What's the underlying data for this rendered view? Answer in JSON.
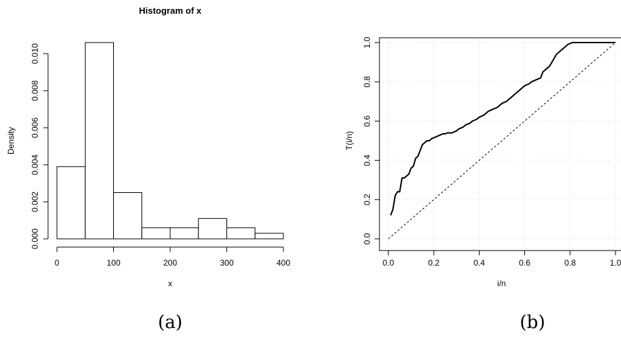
{
  "chart_data": [
    {
      "type": "bar",
      "panel_caption": "(a)",
      "title": "Histogram of x",
      "xlabel": "x",
      "ylabel": "Density",
      "bin_edges": [
        0,
        50,
        100,
        150,
        200,
        250,
        300,
        350,
        400
      ],
      "values": [
        0.0039,
        0.0106,
        0.0025,
        0.0006,
        0.0006,
        0.0011,
        0.0006,
        0.0003
      ],
      "xlim": [
        0,
        400
      ],
      "ylim": [
        0,
        0.0106
      ],
      "x_ticks": [
        "0",
        "100",
        "200",
        "300",
        "400"
      ],
      "y_ticks": [
        "0.000",
        "0.002",
        "0.004",
        "0.006",
        "0.008",
        "0.010"
      ],
      "grid": false,
      "colors": {
        "bar_fill": "#ffffff",
        "bar_stroke": "#000000"
      }
    },
    {
      "type": "line",
      "panel_caption": "(b)",
      "xlabel": "i/n",
      "ylabel": "T(i/n)",
      "xlim": [
        0,
        1
      ],
      "ylim": [
        0,
        1
      ],
      "x_ticks": [
        "0.0",
        "0.2",
        "0.4",
        "0.6",
        "0.8",
        "1.0"
      ],
      "y_ticks": [
        "0.0",
        "0.2",
        "0.4",
        "0.6",
        "0.8",
        "1.0"
      ],
      "grid": true,
      "series": [
        {
          "style": "solid",
          "x": [
            0.01,
            0.02,
            0.03,
            0.04,
            0.05,
            0.06,
            0.07,
            0.08,
            0.09,
            0.1,
            0.11,
            0.12,
            0.13,
            0.14,
            0.15,
            0.16,
            0.17,
            0.18,
            0.19,
            0.2,
            0.21,
            0.22,
            0.23,
            0.24,
            0.25,
            0.26,
            0.27,
            0.28,
            0.29,
            0.3,
            0.31,
            0.32,
            0.33,
            0.34,
            0.35,
            0.36,
            0.37,
            0.38,
            0.39,
            0.4,
            0.41,
            0.42,
            0.43,
            0.44,
            0.45,
            0.46,
            0.47,
            0.48,
            0.49,
            0.5,
            0.51,
            0.52,
            0.53,
            0.54,
            0.55,
            0.56,
            0.57,
            0.58,
            0.59,
            0.6,
            0.61,
            0.62,
            0.63,
            0.64,
            0.65,
            0.66,
            0.67,
            0.68,
            0.69,
            0.7,
            0.71,
            0.72,
            0.73,
            0.74,
            0.75,
            0.76,
            0.77,
            0.78,
            0.79,
            0.8,
            0.81,
            0.82,
            0.83,
            0.84,
            0.85,
            0.86,
            0.87,
            0.88,
            0.89,
            0.9,
            0.91,
            0.92,
            0.93,
            0.94,
            0.95,
            0.96,
            0.97,
            0.98,
            0.99,
            1.0
          ],
          "y": [
            0.12,
            0.15,
            0.22,
            0.24,
            0.24,
            0.31,
            0.31,
            0.32,
            0.33,
            0.36,
            0.37,
            0.41,
            0.42,
            0.45,
            0.48,
            0.49,
            0.5,
            0.5,
            0.51,
            0.515,
            0.52,
            0.525,
            0.53,
            0.535,
            0.535,
            0.54,
            0.54,
            0.54,
            0.545,
            0.55,
            0.56,
            0.565,
            0.57,
            0.58,
            0.585,
            0.59,
            0.6,
            0.605,
            0.61,
            0.62,
            0.625,
            0.63,
            0.64,
            0.65,
            0.655,
            0.66,
            0.665,
            0.67,
            0.68,
            0.69,
            0.695,
            0.7,
            0.71,
            0.72,
            0.73,
            0.74,
            0.75,
            0.76,
            0.77,
            0.78,
            0.785,
            0.79,
            0.8,
            0.805,
            0.81,
            0.815,
            0.82,
            0.85,
            0.86,
            0.87,
            0.88,
            0.9,
            0.92,
            0.94,
            0.95,
            0.96,
            0.97,
            0.98,
            0.99,
            0.995,
            1.0,
            1.0,
            1.0,
            1.0,
            1.0,
            1.0,
            1.0,
            1.0,
            1.0,
            1.0,
            1.0,
            1.0,
            1.0,
            1.0,
            1.0,
            1.0,
            1.0,
            1.0,
            1.0,
            1.0
          ]
        },
        {
          "style": "dashed",
          "x": [
            0,
            1
          ],
          "y": [
            0,
            1
          ]
        }
      ]
    }
  ]
}
